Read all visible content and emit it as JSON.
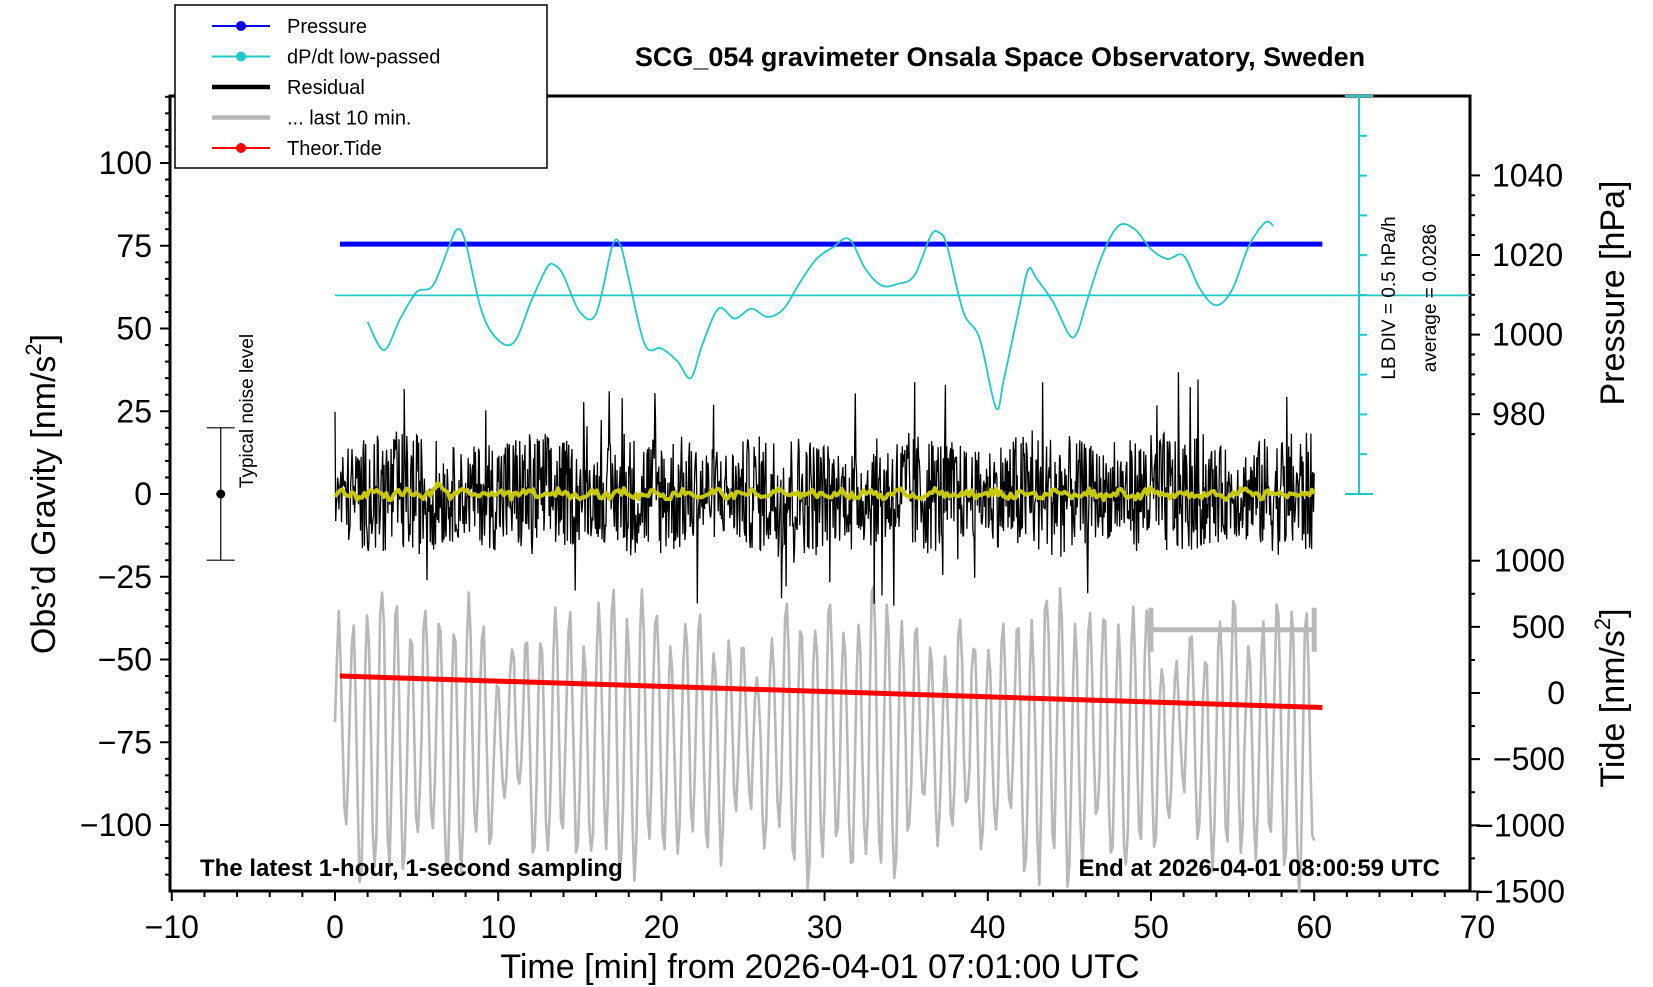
{
  "chart_data": {
    "type": "line",
    "title": "SCG_054 gravimeter Onsala Space Observatory, Sweden",
    "xlabel": "Time [min] from 2026-04-01 07:01:00 UTC",
    "ylabel_left": "Obs’d Gravity [nm/s",
    "ylabel_left_sup": "2",
    "ylabel_left_end": "]",
    "ylabel_right_pressure": "Pressure [hPa]",
    "ylabel_right_tide": "Tide [nm/s",
    "ylabel_right_tide_sup": "2",
    "ylabel_right_tide_end": "]",
    "xlim": [
      -10,
      70
    ],
    "ylim_left": [
      -120,
      120
    ],
    "x_ticks": [
      "−10",
      "0",
      "10",
      "20",
      "30",
      "40",
      "50",
      "60",
      "70"
    ],
    "x_tick_values": [
      -10,
      0,
      10,
      20,
      30,
      40,
      50,
      60,
      70
    ],
    "y_left_ticks": [
      "100",
      "75",
      "50",
      "25",
      "0",
      "−25",
      "−50",
      "−75",
      "−100"
    ],
    "y_left_tick_values": [
      100,
      75,
      50,
      25,
      0,
      -25,
      -50,
      -75,
      -100
    ],
    "pressure_ticks": [
      "1040",
      "1020",
      "1000",
      "980"
    ],
    "pressure_tick_values": [
      1040,
      1020,
      1000,
      980
    ],
    "tide_ticks": [
      "1000",
      "500",
      "0",
      "−500",
      "−1000",
      "−1500"
    ],
    "tide_tick_values": [
      1000,
      500,
      0,
      -500,
      -1000,
      -1500
    ],
    "legend": [
      {
        "label": "Pressure",
        "color": "#0000ff",
        "marker": true
      },
      {
        "label": "dP/dt low-passed",
        "color": "#20c8c8",
        "marker": true
      },
      {
        "label": "Residual",
        "color": "#000000",
        "marker": false
      },
      {
        "label": "... last 10 min.",
        "color": "#b8b8b8",
        "marker": false
      },
      {
        "label": "Theor.Tide",
        "color": "#ff0000",
        "marker": true
      }
    ],
    "series": [
      {
        "name": "Pressure",
        "color": "#0000ff",
        "x": [
          0.3,
          60.5
        ],
        "values": [
          75.5,
          75.5
        ]
      },
      {
        "name": "dP/dt low-passed",
        "color": "#20c8c8",
        "x": [
          2,
          3,
          4,
          5,
          6,
          7,
          7.5,
          8,
          9,
          10,
          11,
          12,
          13,
          13.5,
          14,
          15,
          16,
          17,
          17.5,
          18,
          19,
          20,
          21,
          21.8,
          22.5,
          23.5,
          24.5,
          25.5,
          26.5,
          27.5,
          28.5,
          29.5,
          30.5,
          31.5,
          32.5,
          33.5,
          34.5,
          35.5,
          36.5,
          37,
          37.5,
          38.5,
          39.5,
          40.5,
          41,
          42,
          42.5,
          43,
          44,
          45,
          45.5,
          46,
          47,
          48,
          49,
          50,
          51,
          52,
          53,
          54,
          55,
          56,
          57,
          57.5
        ],
        "values": [
          52,
          43.5,
          53,
          61,
          63,
          75,
          80,
          76,
          55,
          46.5,
          46,
          58,
          68.5,
          69,
          66,
          55,
          54.5,
          75,
          75,
          65,
          45,
          44,
          40,
          35,
          45,
          56,
          53,
          56,
          53.5,
          56,
          64,
          71,
          74.5,
          77,
          68,
          63,
          63.5,
          66,
          78,
          79,
          75,
          55,
          47,
          26,
          35,
          58,
          68,
          65,
          58,
          48,
          49,
          57,
          72,
          81,
          80,
          74,
          71,
          72,
          62,
          57,
          62,
          75,
          82,
          81
        ]
      },
      {
        "name": "dP/dt baseline (average = 0.0286)",
        "color": "#20c8c8",
        "x": [
          0,
          60.5
        ],
        "values": [
          60,
          60
        ]
      },
      {
        "name": "Theor.Tide",
        "color": "#ff0000",
        "x": [
          0.3,
          60.5
        ],
        "values": [
          -55,
          -64.5
        ]
      }
    ],
    "noise_level": {
      "label": "Typical noise level",
      "x": -7,
      "center": 0,
      "low": -20,
      "high": 20
    },
    "lb_div_label": "LB DIV = 0.5 hPa/h",
    "average_label": "average = 0.0286",
    "bottom_left_note": "The latest 1-hour, 1-second sampling",
    "bottom_right_note": "End at 2026-04-01 08:00:59 UTC",
    "last10_bracket": {
      "x_start": 50,
      "x_end": 60,
      "y": -41
    }
  }
}
